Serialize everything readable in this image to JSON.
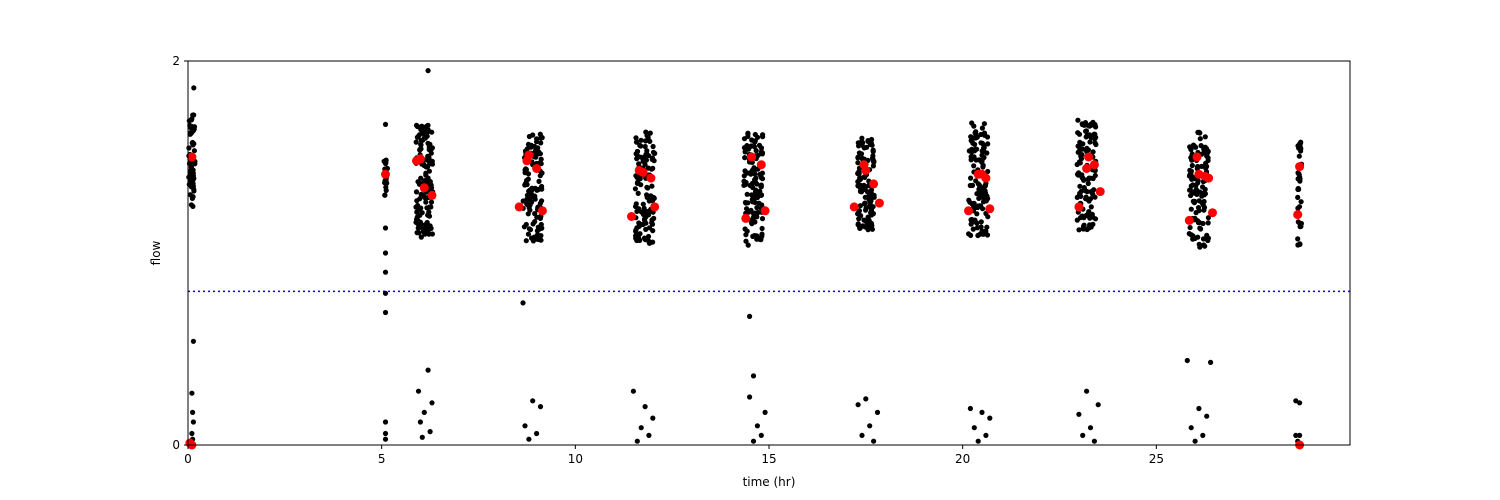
{
  "chart_data": {
    "type": "scatter",
    "title": "",
    "xlabel": "time (hr)",
    "ylabel": "flow",
    "xlim": [
      0,
      30
    ],
    "ylim": [
      0,
      2
    ],
    "x_ticks": [
      0,
      5,
      10,
      15,
      20,
      25
    ],
    "y_ticks": [
      0,
      2
    ],
    "grid": false,
    "legend": "none",
    "threshold_line": {
      "y": 0.8,
      "style": "dotted",
      "color": "#0000ff"
    },
    "series": [
      {
        "kind": "measurements",
        "color": "#000000",
        "marker": "small-circle",
        "clusters": [
          {
            "x_center": 0.1,
            "x_spread": 0.08,
            "y_min": 1.24,
            "y_max": 1.72,
            "n": 60,
            "outliers": [
              [
                0.15,
                1.86
              ],
              [
                0.14,
                0.54
              ],
              [
                0.1,
                0.27
              ],
              [
                0.12,
                0.17
              ],
              [
                0.14,
                0.12
              ],
              [
                0.1,
                0.06
              ],
              [
                0.12,
                0.03
              ],
              [
                0.08,
                0.01
              ]
            ]
          },
          {
            "x_center": 5.1,
            "x_spread": 0.05,
            "y_min": 1.3,
            "y_max": 1.5,
            "n": 20,
            "outliers": [
              [
                5.1,
                1.67
              ],
              [
                5.1,
                1.13
              ],
              [
                5.1,
                1.0
              ],
              [
                5.1,
                0.9
              ],
              [
                5.1,
                0.79
              ],
              [
                5.1,
                0.69
              ],
              [
                5.1,
                0.12
              ],
              [
                5.1,
                0.06
              ],
              [
                5.1,
                0.03
              ]
            ]
          },
          {
            "x_center": 6.1,
            "x_spread": 0.22,
            "y_min": 1.08,
            "y_max": 1.67,
            "n": 130,
            "outliers": [
              [
                6.2,
                1.95
              ],
              [
                6.2,
                0.39
              ],
              [
                5.95,
                0.28
              ],
              [
                6.3,
                0.22
              ],
              [
                6.1,
                0.17
              ],
              [
                6.0,
                0.12
              ],
              [
                6.25,
                0.07
              ],
              [
                6.05,
                0.04
              ]
            ]
          },
          {
            "x_center": 8.9,
            "x_spread": 0.25,
            "y_min": 1.06,
            "y_max": 1.62,
            "n": 120,
            "outliers": [
              [
                8.65,
                0.74
              ],
              [
                8.9,
                0.23
              ],
              [
                9.1,
                0.2
              ],
              [
                8.7,
                0.1
              ],
              [
                9.0,
                0.06
              ],
              [
                8.8,
                0.03
              ]
            ]
          },
          {
            "x_center": 11.8,
            "x_spread": 0.25,
            "y_min": 1.05,
            "y_max": 1.65,
            "n": 120,
            "outliers": [
              [
                11.5,
                0.28
              ],
              [
                11.8,
                0.2
              ],
              [
                12.0,
                0.14
              ],
              [
                11.7,
                0.09
              ],
              [
                11.9,
                0.05
              ],
              [
                11.6,
                0.02
              ]
            ]
          },
          {
            "x_center": 14.6,
            "x_spread": 0.25,
            "y_min": 1.04,
            "y_max": 1.64,
            "n": 120,
            "outliers": [
              [
                14.5,
                0.67
              ],
              [
                14.6,
                0.36
              ],
              [
                14.5,
                0.25
              ],
              [
                14.9,
                0.17
              ],
              [
                14.7,
                0.1
              ],
              [
                14.8,
                0.05
              ],
              [
                14.6,
                0.02
              ]
            ]
          },
          {
            "x_center": 17.5,
            "x_spread": 0.22,
            "y_min": 1.12,
            "y_max": 1.6,
            "n": 110,
            "outliers": [
              [
                17.3,
                0.21
              ],
              [
                17.5,
                0.24
              ],
              [
                17.8,
                0.17
              ],
              [
                17.6,
                0.1
              ],
              [
                17.4,
                0.05
              ],
              [
                17.7,
                0.02
              ]
            ]
          },
          {
            "x_center": 20.4,
            "x_spread": 0.25,
            "y_min": 1.09,
            "y_max": 1.68,
            "n": 120,
            "outliers": [
              [
                20.2,
                0.19
              ],
              [
                20.5,
                0.17
              ],
              [
                20.7,
                0.14
              ],
              [
                20.3,
                0.09
              ],
              [
                20.6,
                0.05
              ],
              [
                20.4,
                0.02
              ]
            ]
          },
          {
            "x_center": 23.2,
            "x_spread": 0.25,
            "y_min": 1.12,
            "y_max": 1.7,
            "n": 120,
            "outliers": [
              [
                23.2,
                0.28
              ],
              [
                23.5,
                0.21
              ],
              [
                23.0,
                0.16
              ],
              [
                23.3,
                0.09
              ],
              [
                23.1,
                0.05
              ],
              [
                23.4,
                0.02
              ]
            ]
          },
          {
            "x_center": 26.1,
            "x_spread": 0.25,
            "y_min": 1.02,
            "y_max": 1.63,
            "n": 120,
            "outliers": [
              [
                25.8,
                0.44
              ],
              [
                26.4,
                0.43
              ],
              [
                26.1,
                0.19
              ],
              [
                26.3,
                0.15
              ],
              [
                25.9,
                0.09
              ],
              [
                26.2,
                0.05
              ],
              [
                26.0,
                0.02
              ]
            ]
          },
          {
            "x_center": 28.7,
            "x_spread": 0.05,
            "y_min": 1.04,
            "y_max": 1.58,
            "n": 40,
            "outliers": [
              [
                28.6,
                0.23
              ],
              [
                28.7,
                0.22
              ],
              [
                28.6,
                0.05
              ],
              [
                28.7,
                0.05
              ],
              [
                28.65,
                0.02
              ]
            ]
          }
        ]
      },
      {
        "kind": "estimates",
        "color": "#ff0000",
        "marker": "circle",
        "points": [
          [
            0.1,
            1.5
          ],
          [
            0.05,
            0.01
          ],
          [
            0.1,
            0.0
          ],
          [
            5.1,
            1.41
          ],
          [
            5.9,
            1.48
          ],
          [
            6.0,
            1.49
          ],
          [
            6.1,
            1.34
          ],
          [
            6.3,
            1.3
          ],
          [
            8.55,
            1.24
          ],
          [
            8.75,
            1.48
          ],
          [
            8.8,
            1.51
          ],
          [
            9.0,
            1.44
          ],
          [
            9.15,
            1.22
          ],
          [
            11.45,
            1.19
          ],
          [
            11.65,
            1.43
          ],
          [
            11.75,
            1.42
          ],
          [
            11.95,
            1.39
          ],
          [
            12.05,
            1.24
          ],
          [
            14.4,
            1.18
          ],
          [
            14.55,
            1.5
          ],
          [
            14.8,
            1.46
          ],
          [
            14.9,
            1.22
          ],
          [
            17.2,
            1.24
          ],
          [
            17.45,
            1.46
          ],
          [
            17.5,
            1.43
          ],
          [
            17.7,
            1.36
          ],
          [
            17.85,
            1.26
          ],
          [
            20.15,
            1.22
          ],
          [
            20.4,
            1.41
          ],
          [
            20.5,
            1.41
          ],
          [
            20.6,
            1.39
          ],
          [
            20.7,
            1.23
          ],
          [
            23.0,
            1.24
          ],
          [
            23.2,
            1.44
          ],
          [
            23.25,
            1.5
          ],
          [
            23.4,
            1.46
          ],
          [
            23.55,
            1.32
          ],
          [
            25.85,
            1.17
          ],
          [
            26.05,
            1.5
          ],
          [
            26.1,
            1.41
          ],
          [
            26.25,
            1.4
          ],
          [
            26.35,
            1.39
          ],
          [
            26.45,
            1.21
          ],
          [
            28.65,
            1.2
          ],
          [
            28.7,
            1.45
          ],
          [
            28.7,
            0.0
          ]
        ]
      }
    ]
  }
}
